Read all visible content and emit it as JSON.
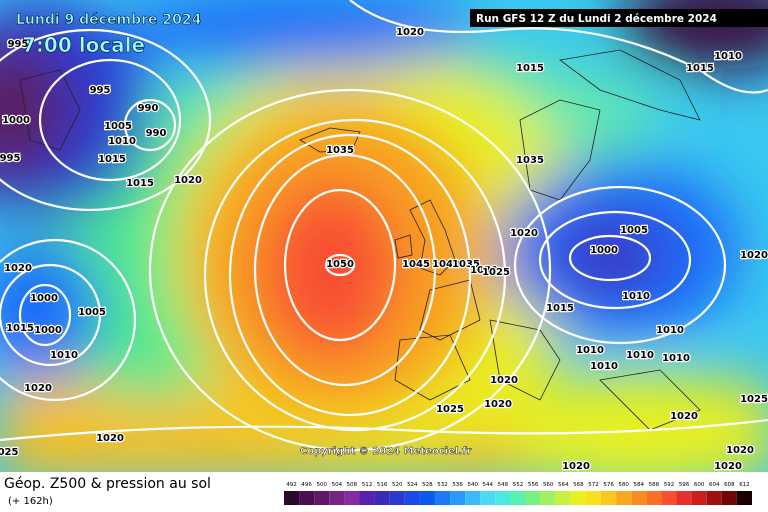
{
  "header": {
    "date": "Lundi 9 décembre 2024",
    "time": "7:00 locale",
    "run": "Run GFS 12 Z du Lundi 2 décembre 2024"
  },
  "footer": {
    "title": "Géop. Z500 & pression au sol",
    "lead": "(+ 162h)",
    "copyright": "Copyright © 2024 Meteociel.fr"
  },
  "isobar_labels": [
    "1020",
    "995",
    "995",
    "990",
    "1000",
    "1005",
    "1010",
    "990",
    "1015",
    "995",
    "1015",
    "1020",
    "1035",
    "1015",
    "1015",
    "1010",
    "1035",
    "1020",
    "1005",
    "1000",
    "1050",
    "1045",
    "1040",
    "1035",
    "1030",
    "1025",
    "1020",
    "1020",
    "1000",
    "1005",
    "1015",
    "1000",
    "1010",
    "1010",
    "1015",
    "1010",
    "1010",
    "1010",
    "1010",
    "1010",
    "1020",
    "1020",
    "1025",
    "1020",
    "1020",
    "1025",
    "1020",
    "025",
    "1020",
    "1020",
    "1020"
  ],
  "scale": {
    "labels": [
      "492",
      "496",
      "500",
      "504",
      "508",
      "512",
      "516",
      "520",
      "524",
      "528",
      "532",
      "536",
      "540",
      "544",
      "548",
      "552",
      "556",
      "560",
      "564",
      "568",
      "572",
      "576",
      "580",
      "584",
      "588",
      "592",
      "596",
      "600",
      "604",
      "608",
      "612"
    ],
    "colors": [
      "#2a0a2a",
      "#4a1050",
      "#62186a",
      "#782484",
      "#8a2aa0",
      "#5a20b0",
      "#3a2ab8",
      "#2a3ad0",
      "#1a4ae8",
      "#0a5af0",
      "#1a7af8",
      "#2a9afa",
      "#3abafa",
      "#4adaf6",
      "#4aeae0",
      "#5af0b0",
      "#7af080",
      "#a0f060",
      "#c8f040",
      "#e8f020",
      "#f8e020",
      "#f8c820",
      "#f8a820",
      "#f88c20",
      "#f87020",
      "#f85030",
      "#e83030",
      "#c82020",
      "#a01010",
      "#700808",
      "#1a0000"
    ]
  }
}
